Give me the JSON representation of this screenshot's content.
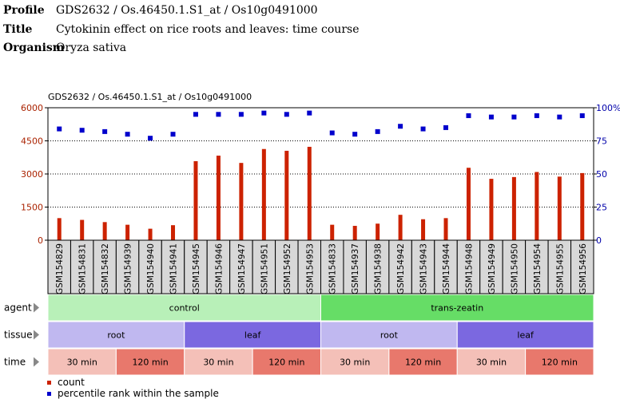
{
  "header": {
    "profile_label": "Profile",
    "profile_value": "GDS2632 / Os.46450.1.S1_at / Os10g0491000",
    "title_label": "Title",
    "title_value": "Cytokinin effect on rice roots and leaves: time course",
    "organism_label": "Organism",
    "organism_value": "Oryza sativa"
  },
  "chart_data": {
    "type": "bar",
    "title": "GDS2632 / Os.46450.1.S1_at / Os10g0491000",
    "categories": [
      "GSM154829",
      "GSM154831",
      "GSM154832",
      "GSM154939",
      "GSM154940",
      "GSM154941",
      "GSM154945",
      "GSM154946",
      "GSM154947",
      "GSM154951",
      "GSM154952",
      "GSM154953",
      "GSM154833",
      "GSM154937",
      "GSM154938",
      "GSM154942",
      "GSM154943",
      "GSM154944",
      "GSM154948",
      "GSM154949",
      "GSM154950",
      "GSM154954",
      "GSM154955",
      "GSM154956"
    ],
    "series": [
      {
        "name": "count",
        "axis": "left",
        "color": "#cc2200",
        "values": [
          1000,
          920,
          820,
          700,
          520,
          680,
          3580,
          3830,
          3500,
          4130,
          4050,
          4230,
          700,
          650,
          750,
          1150,
          950,
          1000,
          3280,
          2780,
          2860,
          3090,
          2880,
          3040
        ]
      },
      {
        "name": "percentile rank within the sample",
        "axis": "right",
        "color": "#0000cc",
        "values": [
          84,
          83,
          82,
          80,
          77,
          80,
          95,
          95,
          95,
          96,
          95,
          96,
          81,
          80,
          82,
          86,
          84,
          85,
          94,
          93,
          93,
          94,
          93,
          94
        ]
      }
    ],
    "y_left": {
      "min": 0,
      "max": 6000,
      "ticks": [
        0,
        1500,
        3000,
        4500,
        6000
      ]
    },
    "y_right": {
      "min": 0,
      "max": 100,
      "ticks": [
        "0",
        "25",
        "50",
        "75",
        "100%"
      ]
    },
    "legend_placement": "bottom-left",
    "grid": "dotted horizontal"
  },
  "tracks": [
    {
      "label": "agent",
      "segments": [
        {
          "text": "control",
          "span": 12,
          "color": "#b8f0b8"
        },
        {
          "text": "trans-zeatin",
          "span": 12,
          "color": "#66dd66"
        }
      ]
    },
    {
      "label": "tissue",
      "segments": [
        {
          "text": "root",
          "span": 6,
          "color": "#c0b8f0"
        },
        {
          "text": "leaf",
          "span": 6,
          "color": "#7b68e0"
        },
        {
          "text": "root",
          "span": 6,
          "color": "#c0b8f0"
        },
        {
          "text": "leaf",
          "span": 6,
          "color": "#7b68e0"
        }
      ]
    },
    {
      "label": "time",
      "segments": [
        {
          "text": "30 min",
          "span": 3,
          "color": "#f4c0b8"
        },
        {
          "text": "120 min",
          "span": 3,
          "color": "#e8786c"
        },
        {
          "text": "30 min",
          "span": 3,
          "color": "#f4c0b8"
        },
        {
          "text": "120 min",
          "span": 3,
          "color": "#e8786c"
        },
        {
          "text": "30 min",
          "span": 3,
          "color": "#f4c0b8"
        },
        {
          "text": "120 min",
          "span": 3,
          "color": "#e8786c"
        },
        {
          "text": "30 min",
          "span": 3,
          "color": "#f4c0b8"
        },
        {
          "text": "120 min",
          "span": 3,
          "color": "#e8786c"
        }
      ]
    }
  ],
  "legend": [
    {
      "label": "count",
      "color": "#cc2200"
    },
    {
      "label": "percentile rank within the sample",
      "color": "#0000cc"
    }
  ]
}
